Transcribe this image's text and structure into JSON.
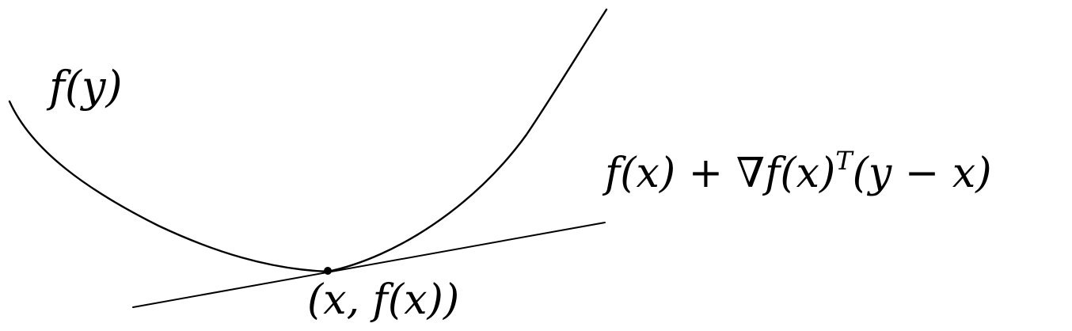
{
  "labels": {
    "function_label": "f(y)",
    "tangent_label": "f(x) + ∇f(x)",
    "tangent_superscript": "T",
    "tangent_tail": "(y − x)",
    "point_label": "(x, f(x))"
  },
  "colors": {
    "stroke": "#000000",
    "background": "#ffffff"
  }
}
